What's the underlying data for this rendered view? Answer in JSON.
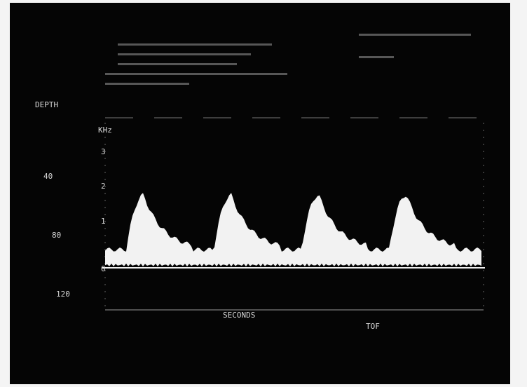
{
  "screen": {
    "depth_label": "DEPTH",
    "depth_ticks": [
      "40",
      "80",
      "120"
    ],
    "freq_unit": "KHz",
    "freq_ticks": [
      "3",
      "2",
      "1",
      "0"
    ],
    "x_label": "SECONDS",
    "footer": "TOF"
  }
}
